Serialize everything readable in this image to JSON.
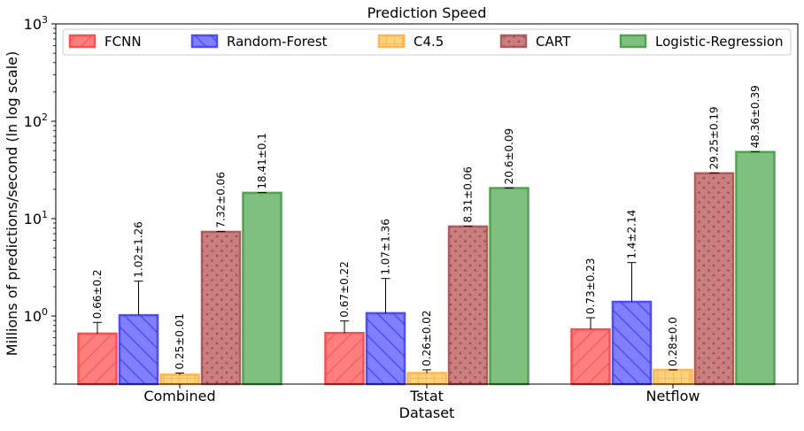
{
  "chart_data": {
    "type": "bar",
    "title": "Prediction Speed",
    "xlabel": "Dataset",
    "ylabel": "Millions of predictions/second (ln log scale)",
    "yscale": "log",
    "ylim": [
      0.2,
      1000
    ],
    "yticks": [
      {
        "value": 1,
        "base": "10",
        "exp": "0"
      },
      {
        "value": 10,
        "base": "10",
        "exp": "1"
      },
      {
        "value": 100,
        "base": "10",
        "exp": "2"
      },
      {
        "value": 1000,
        "base": "10",
        "exp": "3"
      }
    ],
    "grid": false,
    "legend_position": "top",
    "categories": [
      "Combined",
      "Tstat",
      "Netflow"
    ],
    "series": [
      {
        "name": "FCNN",
        "color": "#ff7f7f",
        "edge": "#ff4d4d",
        "hatch": "diagonal-up",
        "values": [
          0.66,
          0.67,
          0.73
        ],
        "errors": [
          0.2,
          0.22,
          0.23
        ],
        "labels": [
          "0.66±0.2",
          "0.67±0.22",
          "0.73±0.23"
        ]
      },
      {
        "name": "Random-Forest",
        "color": "#7f7fff",
        "edge": "#4d4dff",
        "hatch": "diagonal-down",
        "values": [
          1.02,
          1.07,
          1.4
        ],
        "errors": [
          1.26,
          1.36,
          2.14
        ],
        "labels": [
          "1.02±1.26",
          "1.07±1.36",
          "1.4±2.14"
        ]
      },
      {
        "name": "C4.5",
        "color": "#ffd27f",
        "edge": "#ffb74d",
        "hatch": "grid",
        "values": [
          0.25,
          0.26,
          0.28
        ],
        "errors": [
          0.01,
          0.02,
          0.0
        ],
        "labels": [
          "0.25±0.01",
          "0.26±0.02",
          "0.28±0.0"
        ]
      },
      {
        "name": "CART",
        "color": "#c97f7f",
        "edge": "#b35c5c",
        "hatch": "dots",
        "values": [
          7.32,
          8.31,
          29.25
        ],
        "errors": [
          0.06,
          0.06,
          0.19
        ],
        "labels": [
          "7.32±0.06",
          "8.31±0.06",
          "29.25±0.19"
        ]
      },
      {
        "name": "Logistic-Regression",
        "color": "#7fbf7f",
        "edge": "#4da64d",
        "hatch": "none",
        "values": [
          18.41,
          20.6,
          48.36
        ],
        "errors": [
          0.1,
          0.09,
          0.39
        ],
        "labels": [
          "18.41±0.1",
          "20.6±0.09",
          "48.36±0.39"
        ]
      }
    ]
  }
}
